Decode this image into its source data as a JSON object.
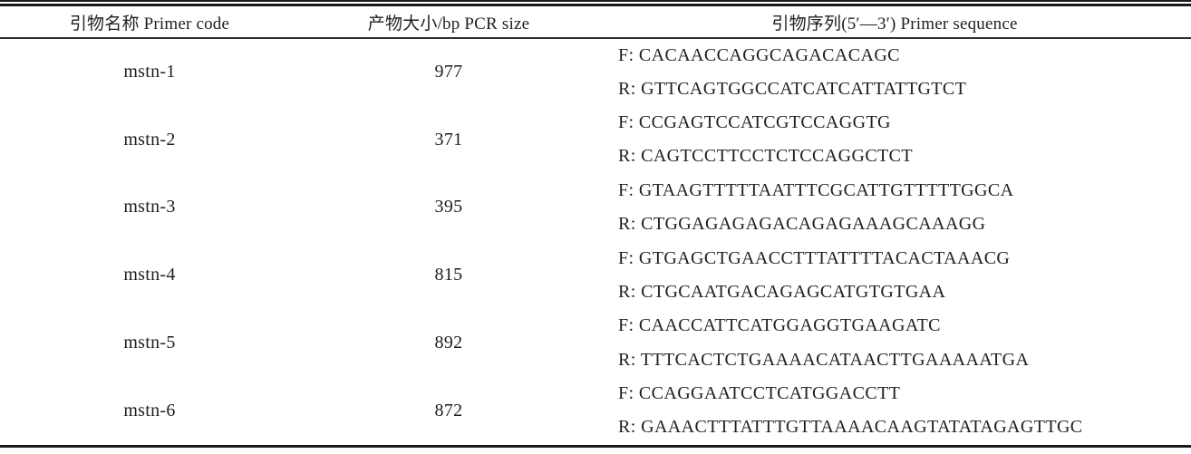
{
  "table": {
    "headers": {
      "primer_code": "引物名称 Primer code",
      "pcr_size": "产物大小/bp PCR size",
      "primer_sequence": "引物序列(5′—3′) Primer sequence"
    },
    "rows": [
      {
        "code": "mstn-1",
        "size": "977",
        "f": "F: CACAACCAGGCAGACACAGC",
        "r": "R: GTTCAGTGGCCATCATCATTATTGTCT"
      },
      {
        "code": "mstn-2",
        "size": "371",
        "f": "F: CCGAGTCCATCGTCCAGGTG",
        "r": "R: CAGTCCTTCCTCTCCAGGCTCT"
      },
      {
        "code": "mstn-3",
        "size": "395",
        "f": "F: GTAAGTTTTTAATTTCGCATTGTTTTTGGCA",
        "r": "R: CTGGAGAGAGACAGAGAAAGCAAAGG"
      },
      {
        "code": "mstn-4",
        "size": "815",
        "f": "F: GTGAGCTGAACCTTTATTTTACACTAAACG",
        "r": "R: CTGCAATGACAGAGCATGTGTGAA"
      },
      {
        "code": "mstn-5",
        "size": "892",
        "f": "F: CAACCATTCATGGAGGTGAAGATC",
        "r": "R: TTTCACTCTGAAAACATAACTTGAAAAATGA"
      },
      {
        "code": "mstn-6",
        "size": "872",
        "f": "F: CCAGGAATCCTCATGGACCTT",
        "r": "R: GAAACTTTATTTGTTAAAACAAGTATATAGAGTTGC"
      }
    ]
  },
  "colors": {
    "rule": "#1a1a1a",
    "text": "#1f1f1f",
    "background": "#ffffff"
  }
}
